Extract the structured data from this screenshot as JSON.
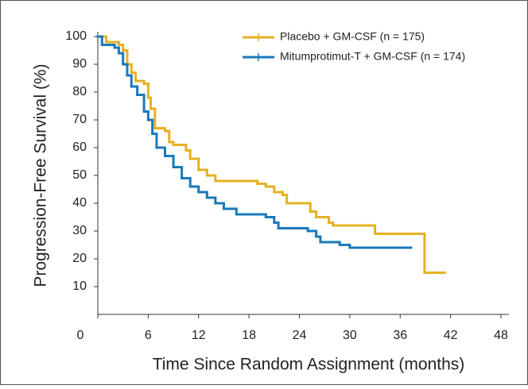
{
  "chart_data": {
    "type": "step",
    "xlabel": "Time Since Random Assignment (months)",
    "ylabel": "Progression-Free Survival (%)",
    "xlim": [
      0,
      48
    ],
    "xticks": [
      0,
      6,
      12,
      18,
      24,
      30,
      36,
      42,
      48
    ],
    "ylim": [
      0,
      100
    ],
    "yticks": [
      10,
      20,
      30,
      40,
      50,
      60,
      70,
      80,
      90,
      100
    ],
    "legend": "top-right",
    "series": [
      {
        "name": "Placebo + GM-CSF (n = 175)",
        "color": "#e6b022",
        "x": [
          0,
          1,
          2.5,
          3,
          3.5,
          4,
          4.5,
          5.5,
          6,
          6.3,
          6.8,
          8,
          8.5,
          9,
          10.5,
          11,
          12,
          13,
          14,
          19,
          20,
          21,
          22,
          22.5,
          25.3,
          26,
          27.5,
          28,
          33,
          38.9
        ],
        "values": [
          100,
          98,
          97,
          95,
          90,
          87,
          84,
          83,
          78,
          74,
          67,
          66,
          62,
          61,
          59,
          56,
          52,
          50,
          48,
          47,
          46,
          44,
          43,
          40,
          37,
          35,
          33,
          32,
          29,
          15
        ],
        "end": 41.3
      },
      {
        "name": "Mitumprotimut-T + GM-CSF (n = 174)",
        "color": "#1a79bb",
        "x": [
          0,
          0.5,
          2,
          2.5,
          3,
          3.5,
          4,
          4.7,
          5.5,
          6,
          6.5,
          7,
          8,
          9,
          10,
          11,
          12,
          13,
          14,
          15,
          16.5,
          20,
          21,
          21.5,
          25,
          26,
          26.5,
          28.8,
          30
        ],
        "values": [
          100,
          97,
          96,
          94,
          90,
          86,
          82,
          79,
          73,
          70,
          65,
          60,
          57,
          53,
          49,
          46,
          44,
          42,
          40,
          38,
          36,
          35,
          33,
          31,
          30,
          28,
          26,
          25,
          24
        ],
        "end": 37.3
      }
    ]
  }
}
